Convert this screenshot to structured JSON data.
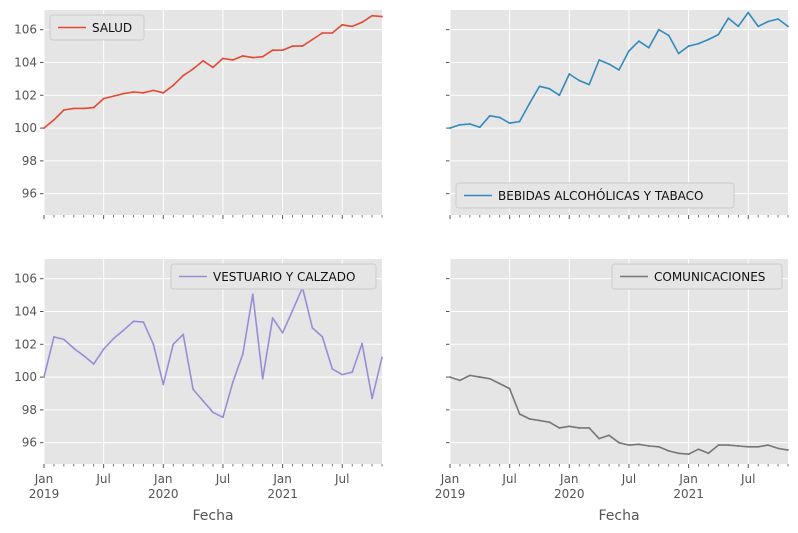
{
  "chart_data": [
    {
      "type": "line",
      "series": [
        {
          "name": "SALUD",
          "color": "#E24A33",
          "x": [
            "2019-01",
            "2019-02",
            "2019-03",
            "2019-04",
            "2019-05",
            "2019-06",
            "2019-07",
            "2019-08",
            "2019-09",
            "2019-10",
            "2019-11",
            "2019-12",
            "2020-01",
            "2020-02",
            "2020-03",
            "2020-04",
            "2020-05",
            "2020-06",
            "2020-07",
            "2020-08",
            "2020-09",
            "2020-10",
            "2020-11",
            "2020-12",
            "2021-01",
            "2021-02",
            "2021-03",
            "2021-04",
            "2021-05",
            "2021-06",
            "2021-07",
            "2021-08",
            "2021-09",
            "2021-10",
            "2021-11"
          ],
          "values": [
            100.0,
            100.5,
            101.1,
            101.2,
            101.2,
            101.25,
            101.8,
            101.95,
            102.1,
            102.2,
            102.15,
            102.3,
            102.15,
            102.6,
            103.2,
            103.6,
            104.1,
            103.7,
            104.25,
            104.15,
            104.4,
            104.3,
            104.35,
            104.75,
            104.75,
            105.0,
            105.0,
            105.4,
            105.8,
            105.8,
            106.3,
            106.2,
            106.45,
            106.85,
            106.8
          ]
        }
      ],
      "legend": "upper left",
      "ylim": [
        94.7,
        107.2
      ],
      "yticks": [
        "96",
        "98",
        "100",
        "102",
        "104",
        "106"
      ],
      "grid": true
    },
    {
      "type": "line",
      "series": [
        {
          "name": "BEBIDAS ALCOHÓLICAS Y TABACO",
          "color": "#348ABD",
          "x": [
            "2019-01",
            "2019-02",
            "2019-03",
            "2019-04",
            "2019-05",
            "2019-06",
            "2019-07",
            "2019-08",
            "2019-09",
            "2019-10",
            "2019-11",
            "2019-12",
            "2020-01",
            "2020-02",
            "2020-03",
            "2020-04",
            "2020-05",
            "2020-06",
            "2020-07",
            "2020-08",
            "2020-09",
            "2020-10",
            "2020-11",
            "2020-12",
            "2021-01",
            "2021-02",
            "2021-03",
            "2021-04",
            "2021-05",
            "2021-06",
            "2021-07",
            "2021-08",
            "2021-09",
            "2021-10",
            "2021-11"
          ],
          "values": [
            100.0,
            100.2,
            100.25,
            100.05,
            100.75,
            100.65,
            100.3,
            100.4,
            101.5,
            102.55,
            102.4,
            102.0,
            103.3,
            102.9,
            102.65,
            104.15,
            103.9,
            103.55,
            104.7,
            105.3,
            104.9,
            106.0,
            105.65,
            104.55,
            105.0,
            105.15,
            105.4,
            105.7,
            106.7,
            106.2,
            107.05,
            106.2,
            106.5,
            106.65,
            106.2
          ]
        }
      ],
      "legend": "lower left",
      "ylim": [
        94.7,
        107.2
      ],
      "grid": true
    },
    {
      "type": "line",
      "series": [
        {
          "name": "VESTUARIO Y CALZADO",
          "color": "#988ED5",
          "x": [
            "2019-01",
            "2019-02",
            "2019-03",
            "2019-04",
            "2019-05",
            "2019-06",
            "2019-07",
            "2019-08",
            "2019-09",
            "2019-10",
            "2019-11",
            "2019-12",
            "2020-01",
            "2020-02",
            "2020-03",
            "2020-04",
            "2020-05",
            "2020-06",
            "2020-07",
            "2020-08",
            "2020-09",
            "2020-10",
            "2020-11",
            "2020-12",
            "2021-01",
            "2021-02",
            "2021-03",
            "2021-04",
            "2021-05",
            "2021-06",
            "2021-07",
            "2021-08",
            "2021-09",
            "2021-10",
            "2021-11"
          ],
          "values": [
            100.0,
            102.45,
            102.3,
            101.75,
            101.3,
            100.8,
            101.7,
            102.35,
            102.85,
            103.4,
            103.35,
            102.0,
            99.55,
            102.0,
            102.6,
            99.25,
            98.55,
            97.85,
            97.55,
            99.7,
            101.4,
            105.05,
            99.9,
            103.6,
            102.7,
            104.05,
            105.45,
            103.0,
            102.45,
            100.5,
            100.15,
            100.3,
            102.05,
            98.7,
            101.2
          ]
        }
      ],
      "legend": "upper right",
      "ylim": [
        94.7,
        107.2
      ],
      "yticks": [
        "96",
        "98",
        "100",
        "102",
        "104",
        "106"
      ],
      "xticks_major": [
        {
          "label": "Jan",
          "sub": "2019"
        },
        {
          "label": "Jul",
          "sub": ""
        },
        {
          "label": "Jan",
          "sub": "2020"
        },
        {
          "label": "Jul",
          "sub": ""
        },
        {
          "label": "Jan",
          "sub": "2021"
        },
        {
          "label": "Jul",
          "sub": ""
        }
      ],
      "xlabel": "Fecha",
      "grid": true
    },
    {
      "type": "line",
      "series": [
        {
          "name": "COMUNICACIONES",
          "color": "#777777",
          "x": [
            "2019-01",
            "2019-02",
            "2019-03",
            "2019-04",
            "2019-05",
            "2019-06",
            "2019-07",
            "2019-08",
            "2019-09",
            "2019-10",
            "2019-11",
            "2019-12",
            "2020-01",
            "2020-02",
            "2020-03",
            "2020-04",
            "2020-05",
            "2020-06",
            "2020-07",
            "2020-08",
            "2020-09",
            "2020-10",
            "2020-11",
            "2020-12",
            "2021-01",
            "2021-02",
            "2021-03",
            "2021-04",
            "2021-05",
            "2021-06",
            "2021-07",
            "2021-08",
            "2021-09",
            "2021-10",
            "2021-11"
          ],
          "values": [
            100.0,
            99.8,
            100.1,
            100.0,
            99.9,
            99.6,
            99.3,
            97.75,
            97.45,
            97.35,
            97.25,
            96.9,
            97.0,
            96.9,
            96.9,
            96.25,
            96.45,
            96.0,
            95.85,
            95.9,
            95.8,
            95.75,
            95.5,
            95.35,
            95.3,
            95.6,
            95.35,
            95.85,
            95.85,
            95.8,
            95.75,
            95.75,
            95.85,
            95.65,
            95.55
          ]
        }
      ],
      "legend": "upper right",
      "ylim": [
        94.7,
        107.2
      ],
      "xticks_major": [
        {
          "label": "Jan",
          "sub": "2019"
        },
        {
          "label": "Jul",
          "sub": ""
        },
        {
          "label": "Jan",
          "sub": "2020"
        },
        {
          "label": "Jul",
          "sub": ""
        },
        {
          "label": "Jan",
          "sub": "2021"
        },
        {
          "label": "Jul",
          "sub": ""
        }
      ],
      "xlabel": "Fecha",
      "grid": true
    }
  ],
  "style": {
    "axes_bg": "#E5E5E5",
    "grid_color": "#FFFFFF",
    "tick_color": "#555555"
  }
}
